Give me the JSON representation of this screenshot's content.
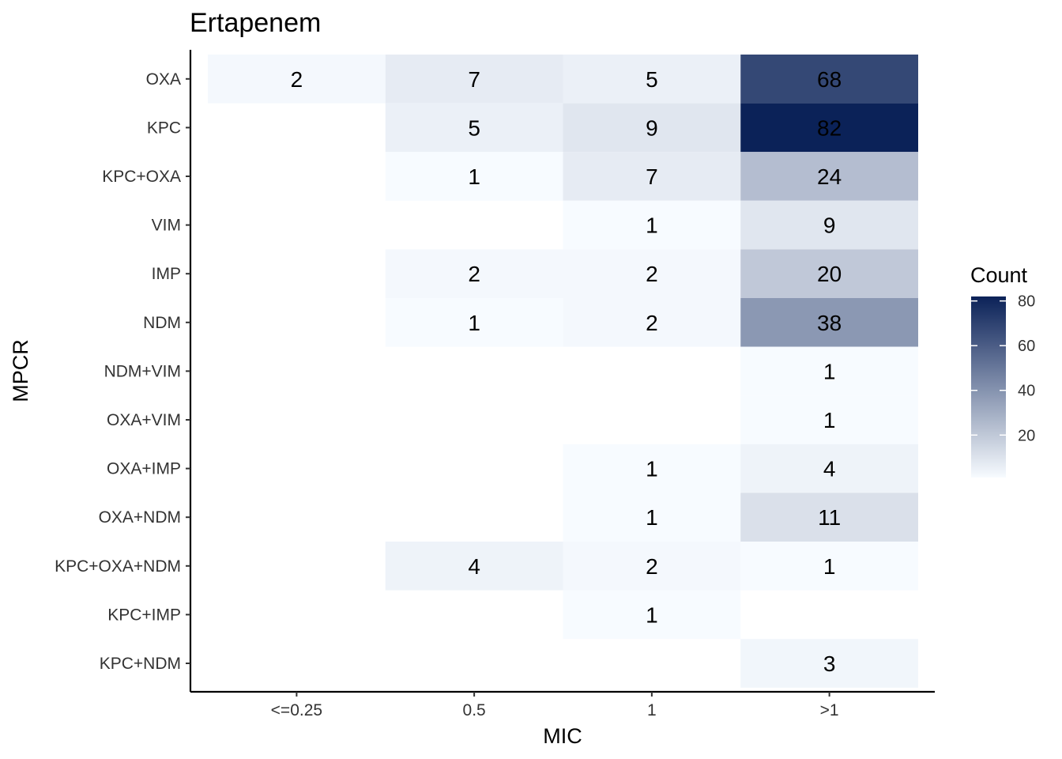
{
  "chart_data": {
    "type": "heatmap",
    "title": "Ertapenem",
    "xlabel": "MIC",
    "ylabel": "MPCR",
    "x_categories": [
      "<=0.25",
      "0.5",
      "1",
      ">1"
    ],
    "y_categories": [
      "OXA",
      "KPC",
      "KPC+OXA",
      "VIM",
      "IMP",
      "NDM",
      "NDM+VIM",
      "OXA+VIM",
      "OXA+IMP",
      "OXA+NDM",
      "KPC+OXA+NDM",
      "KPC+IMP",
      "KPC+NDM"
    ],
    "cells": [
      {
        "x": "<=0.25",
        "y": "OXA",
        "value": 2
      },
      {
        "x": "0.5",
        "y": "OXA",
        "value": 7
      },
      {
        "x": "1",
        "y": "OXA",
        "value": 5
      },
      {
        "x": ">1",
        "y": "OXA",
        "value": 68
      },
      {
        "x": "0.5",
        "y": "KPC",
        "value": 5
      },
      {
        "x": "1",
        "y": "KPC",
        "value": 9
      },
      {
        "x": ">1",
        "y": "KPC",
        "value": 82
      },
      {
        "x": "0.5",
        "y": "KPC+OXA",
        "value": 1
      },
      {
        "x": "1",
        "y": "KPC+OXA",
        "value": 7
      },
      {
        "x": ">1",
        "y": "KPC+OXA",
        "value": 24
      },
      {
        "x": "1",
        "y": "VIM",
        "value": 1
      },
      {
        "x": ">1",
        "y": "VIM",
        "value": 9
      },
      {
        "x": "0.5",
        "y": "IMP",
        "value": 2
      },
      {
        "x": "1",
        "y": "IMP",
        "value": 2
      },
      {
        "x": ">1",
        "y": "IMP",
        "value": 20
      },
      {
        "x": "0.5",
        "y": "NDM",
        "value": 1
      },
      {
        "x": "1",
        "y": "NDM",
        "value": 2
      },
      {
        "x": ">1",
        "y": "NDM",
        "value": 38
      },
      {
        "x": ">1",
        "y": "NDM+VIM",
        "value": 1
      },
      {
        "x": ">1",
        "y": "OXA+VIM",
        "value": 1
      },
      {
        "x": "1",
        "y": "OXA+IMP",
        "value": 1
      },
      {
        "x": ">1",
        "y": "OXA+IMP",
        "value": 4
      },
      {
        "x": "1",
        "y": "OXA+NDM",
        "value": 1
      },
      {
        "x": ">1",
        "y": "OXA+NDM",
        "value": 11
      },
      {
        "x": "0.5",
        "y": "KPC+OXA+NDM",
        "value": 4
      },
      {
        "x": "1",
        "y": "KPC+OXA+NDM",
        "value": 2
      },
      {
        "x": ">1",
        "y": "KPC+OXA+NDM",
        "value": 1
      },
      {
        "x": "1",
        "y": "KPC+IMP",
        "value": 1
      },
      {
        "x": ">1",
        "y": "KPC+NDM",
        "value": 3
      }
    ],
    "legend": {
      "title": "Count",
      "position": "right",
      "ticks": [
        20,
        40,
        60,
        80
      ],
      "range": [
        1,
        82
      ],
      "color_low": "#f7fbff",
      "color_high": "#0b2258"
    },
    "grid": false
  }
}
